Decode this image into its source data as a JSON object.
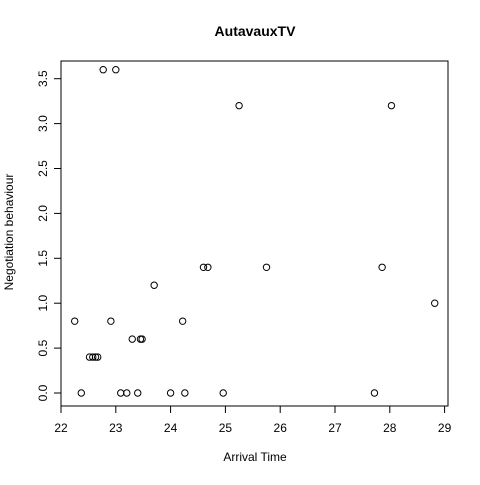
{
  "chart_data": {
    "type": "scatter",
    "title": "AutavauxTV",
    "xlabel": "Arrival Time",
    "ylabel": "Negotiation behaviour",
    "xlim": [
      22,
      29
    ],
    "ylim": [
      0,
      3.6
    ],
    "x_ticks": [
      "22",
      "23",
      "24",
      "25",
      "26",
      "27",
      "28",
      "29"
    ],
    "y_ticks": [
      "0.0",
      "0.5",
      "1.0",
      "1.5",
      "2.0",
      "2.5",
      "3.0",
      "3.5"
    ],
    "grid": false,
    "legend": "none",
    "series": [
      {
        "points": [
          {
            "x": 22.25,
            "y": 0.8
          },
          {
            "x": 22.37,
            "y": 0.0
          },
          {
            "x": 22.52,
            "y": 0.4
          },
          {
            "x": 22.58,
            "y": 0.4
          },
          {
            "x": 22.63,
            "y": 0.4
          },
          {
            "x": 22.67,
            "y": 0.4
          },
          {
            "x": 22.77,
            "y": 3.6
          },
          {
            "x": 22.91,
            "y": 0.8
          },
          {
            "x": 23.0,
            "y": 3.6
          },
          {
            "x": 23.09,
            "y": 0.0
          },
          {
            "x": 23.2,
            "y": 0.0
          },
          {
            "x": 23.3,
            "y": 0.6
          },
          {
            "x": 23.4,
            "y": 0.0
          },
          {
            "x": 23.45,
            "y": 0.6
          },
          {
            "x": 23.48,
            "y": 0.6
          },
          {
            "x": 23.7,
            "y": 1.2
          },
          {
            "x": 24.0,
            "y": 0.0
          },
          {
            "x": 24.22,
            "y": 0.8
          },
          {
            "x": 24.26,
            "y": 0.0
          },
          {
            "x": 24.6,
            "y": 1.4
          },
          {
            "x": 24.68,
            "y": 1.4
          },
          {
            "x": 24.96,
            "y": 0.0
          },
          {
            "x": 25.25,
            "y": 3.2
          },
          {
            "x": 25.75,
            "y": 1.4
          },
          {
            "x": 27.72,
            "y": 0.0
          },
          {
            "x": 27.86,
            "y": 1.4
          },
          {
            "x": 28.03,
            "y": 3.2
          },
          {
            "x": 28.82,
            "y": 1.0
          }
        ]
      }
    ]
  }
}
